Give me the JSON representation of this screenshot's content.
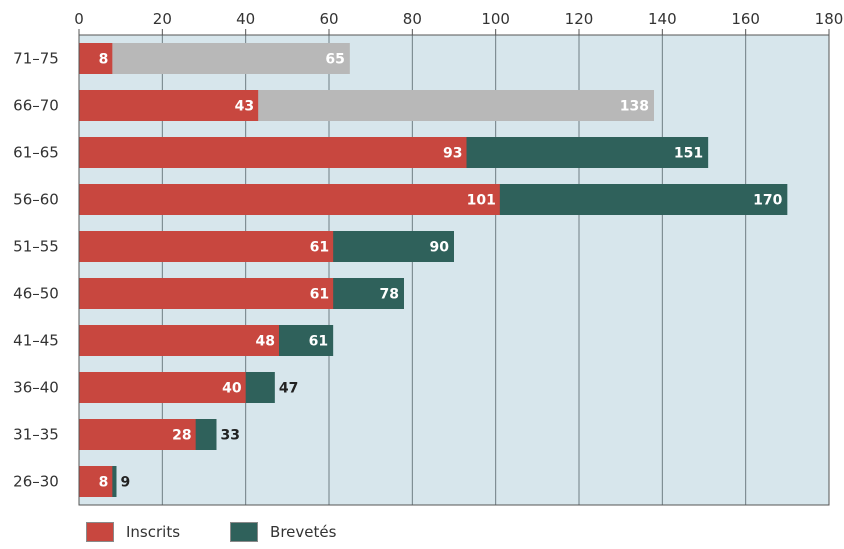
{
  "colors": {
    "inscrits": "#c8473f",
    "brevetes": "#2f615b",
    "retired_brevetes": "#b8b8b8",
    "plot_bg": "#d7e6ec",
    "grid": "#6f7d83"
  },
  "chart_data": {
    "type": "bar",
    "orientation": "horizontal",
    "stacked": "overlay",
    "title": "",
    "xlabel": "",
    "ylabel": "",
    "xlim": [
      0,
      180
    ],
    "xticks": [
      0,
      20,
      40,
      60,
      80,
      100,
      120,
      140,
      160,
      180
    ],
    "x_axis_position": "top",
    "grid": true,
    "legend_position": "bottom-left",
    "categories": [
      "71–75",
      "66–70",
      "61–65",
      "56–60",
      "51–55",
      "46–50",
      "41–45",
      "36–40",
      "31–35",
      "26–30"
    ],
    "series": [
      {
        "name": "Inscrits",
        "values": [
          8,
          43,
          93,
          101,
          61,
          61,
          48,
          40,
          28,
          8
        ]
      },
      {
        "name": "Brevetés",
        "values": [
          65,
          138,
          151,
          170,
          90,
          78,
          61,
          47,
          33,
          9
        ]
      }
    ],
    "brevetes_grey_categories": [
      "71–75",
      "66–70"
    ]
  },
  "legend": {
    "items": [
      {
        "label": "Inscrits"
      },
      {
        "label": "Brevetés"
      }
    ]
  }
}
